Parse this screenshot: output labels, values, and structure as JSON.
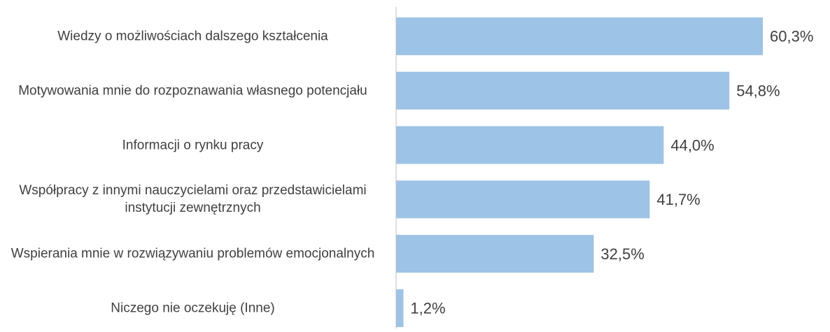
{
  "chart_data": {
    "type": "bar",
    "orientation": "horizontal",
    "categories": [
      "Wiedzy o możliwościach dalszego kształcenia",
      "Motywowania mnie do rozpoznawania własnego potencjału",
      "Informacji o rynku pracy",
      "Współpracy z innymi nauczycielami oraz przedstawicielami instytucji zewnętrznych",
      "Wspierania mnie w rozwiązywaniu problemów emocjonalnych",
      "Niczego nie oczekuję (Inne)"
    ],
    "values": [
      60.3,
      54.8,
      44.0,
      41.7,
      32.5,
      1.2
    ],
    "value_labels": [
      "60,3%",
      "54,8%",
      "44,0%",
      "41,7%",
      "32,5%",
      "1,2%"
    ],
    "color": "#9dc3e6"
  }
}
